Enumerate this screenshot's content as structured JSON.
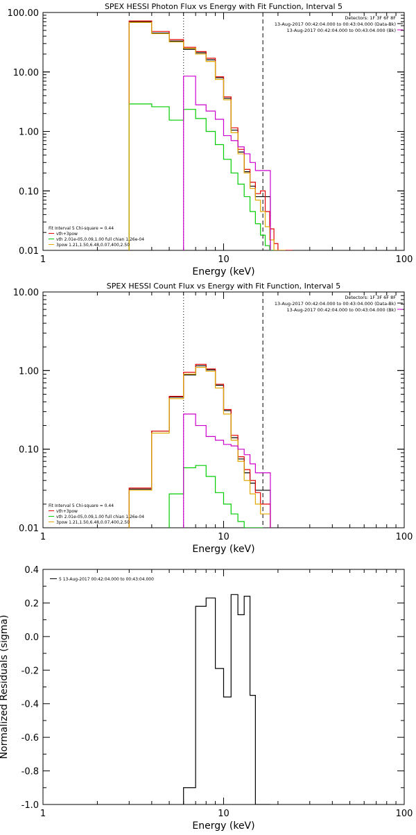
{
  "chart_data": [
    {
      "type": "line",
      "title": "SPEX HESSI Photon Flux vs Energy with Fit Function, Interval 5",
      "xlabel": "Energy (keV)",
      "ylabel": "",
      "xscale": "log",
      "yscale": "log",
      "xlim": [
        1,
        100
      ],
      "ylim": [
        0.01,
        100
      ],
      "xticks": [
        "1",
        "10",
        "100"
      ],
      "yticks": [
        "0.01",
        "0.10",
        "1.00",
        "10.00",
        "100.00"
      ],
      "dotted_line_x": 6.0,
      "dashed_line_x": 16.5,
      "header_lines": [
        "Detectors: 1F 3F 6F 8F",
        "13-Aug-2017 00:42:04.000 to 00:43:04.000 (Data-Bk)",
        "13-Aug-2017 00:42:04.000 to 00:43:04.000 (Bk)"
      ],
      "legend_lines": [
        "Fit Interval 5   Chi-square = 0.44",
        "vth+3pow",
        "vth 2.01e-05,0.09,1.00  full chian 1.26e-04",
        "3pow 1.21,1.50,6.48,0.07,400,2.50"
      ],
      "series": [
        {
          "name": "Data-Bk",
          "color": "#000000",
          "x": [
            3,
            4,
            5,
            6,
            7,
            8,
            9,
            10,
            11,
            12,
            13,
            14,
            15,
            16.5
          ],
          "values": [
            70,
            45,
            33,
            24,
            21,
            16,
            8,
            3.6,
            1.05,
            0.45,
            0.21,
            0.12,
            0.08,
            0.08
          ]
        },
        {
          "name": "vth+3pow",
          "color": "#e00000",
          "x": [
            3,
            4,
            5,
            6,
            7,
            8,
            9,
            10,
            11,
            12,
            13,
            14,
            15,
            16,
            17,
            18,
            19,
            20,
            21,
            22
          ],
          "values": [
            72,
            48,
            35,
            26,
            22,
            17,
            8.3,
            3.8,
            1.15,
            0.5,
            0.23,
            0.14,
            0.09,
            0.1,
            0.045,
            0.023,
            0.013,
            0.01,
            0.01,
            0.01
          ]
        },
        {
          "name": "vth",
          "color": "#00cc00",
          "x": [
            3,
            4,
            5,
            6,
            7,
            8,
            9,
            10,
            11,
            12,
            13,
            14,
            15,
            16,
            17,
            18
          ],
          "values": [
            2.9,
            2.6,
            1.55,
            2.35,
            1.65,
            1.0,
            0.6,
            0.34,
            0.2,
            0.13,
            0.08,
            0.045,
            0.028,
            0.018,
            0.012,
            0.01
          ]
        },
        {
          "name": "3pow",
          "color": "#e0a800",
          "x": [
            3,
            4,
            5,
            6,
            7,
            8,
            9,
            10,
            11,
            12,
            13,
            14,
            15,
            16,
            17,
            18,
            19,
            20
          ],
          "values": [
            68,
            44,
            32,
            25,
            20,
            15,
            7.5,
            3.4,
            0.95,
            0.42,
            0.2,
            0.11,
            0.07,
            0.045,
            0.025,
            0.015,
            0.01,
            0.01
          ]
        },
        {
          "name": "Bk",
          "color": "#cc00cc",
          "x": [
            6,
            7,
            8,
            9,
            10,
            11,
            12,
            13,
            14,
            15,
            16.5
          ],
          "values": [
            8.5,
            2.8,
            2.2,
            1.6,
            0.85,
            0.7,
            0.55,
            0.42,
            0.3,
            0.22,
            0.22
          ]
        }
      ]
    },
    {
      "type": "line",
      "title": "SPEX HESSI Count Flux vs Energy with Fit Function, Interval 5",
      "xlabel": "Energy (keV)",
      "ylabel": "",
      "xscale": "log",
      "yscale": "log",
      "xlim": [
        1,
        100
      ],
      "ylim": [
        0.01,
        10
      ],
      "xticks": [
        "1",
        "10",
        "100"
      ],
      "yticks": [
        "0.01",
        "0.10",
        "1.00",
        "10.00"
      ],
      "dotted_line_x": 6.0,
      "dashed_line_x": 16.5,
      "header_lines": [
        "Detectors: 1F 3F 6F 8F",
        "13-Aug-2017 00:42:04.000 to 00:43:04.000 (Data-Bk)",
        "13-Aug-2017 00:42:04.000 to 00:43:04.000 (Bk)"
      ],
      "legend_lines": [
        "Fit Interval 5   Chi-square = 0.44",
        "vth+3pow",
        "vth 2.01e-05,0.09,1.00  full chian 1.26e-04",
        "3pow 1.21,1.50,6.48,0.07,400,2.50"
      ],
      "series": [
        {
          "name": "Data-Bk",
          "color": "#000000",
          "x": [
            3,
            4,
            5,
            6,
            7,
            8,
            9,
            10,
            11,
            12,
            13,
            14,
            15,
            16.5
          ],
          "values": [
            0.031,
            0.17,
            0.46,
            0.88,
            1.15,
            1.02,
            0.65,
            0.31,
            0.14,
            0.075,
            0.05,
            0.037,
            0.03,
            0.03
          ]
        },
        {
          "name": "vth+3pow",
          "color": "#e00000",
          "x": [
            3,
            4,
            5,
            6,
            7,
            8,
            9,
            10,
            11,
            12,
            13,
            14,
            15,
            16,
            16.5
          ],
          "values": [
            0.032,
            0.17,
            0.47,
            0.95,
            1.2,
            1.05,
            0.67,
            0.32,
            0.15,
            0.08,
            0.055,
            0.04,
            0.028,
            0.02,
            0.02
          ]
        },
        {
          "name": "vth",
          "color": "#00cc00",
          "x": [
            5,
            6,
            7,
            8,
            9,
            10,
            11,
            12,
            13,
            14,
            15
          ],
          "values": [
            0.027,
            0.058,
            0.062,
            0.045,
            0.028,
            0.02,
            0.015,
            0.012,
            0.01,
            0.01,
            0.01
          ]
        },
        {
          "name": "3pow",
          "color": "#e0a800",
          "x": [
            3,
            4,
            5,
            6,
            7,
            8,
            9,
            10,
            11,
            12,
            13,
            14,
            15,
            16,
            16.5
          ],
          "values": [
            0.03,
            0.16,
            0.44,
            0.9,
            1.1,
            0.98,
            0.6,
            0.28,
            0.13,
            0.07,
            0.04,
            0.027,
            0.02,
            0.015,
            0.015
          ]
        },
        {
          "name": "Bk",
          "color": "#cc00cc",
          "x": [
            6,
            7,
            8,
            9,
            10,
            11,
            12,
            13,
            14,
            15,
            16.5
          ],
          "values": [
            0.28,
            0.2,
            0.145,
            0.13,
            0.115,
            0.11,
            0.1,
            0.085,
            0.065,
            0.05,
            0.05
          ]
        }
      ]
    },
    {
      "type": "line",
      "title": "",
      "xlabel": "Energy (keV)",
      "ylabel": "Normalized Residuals (sigma)",
      "xscale": "log",
      "yscale": "linear",
      "xlim": [
        1,
        100
      ],
      "ylim": [
        -1.0,
        0.4
      ],
      "xticks": [
        "1",
        "10",
        "100"
      ],
      "yticks": [
        "-1.0",
        "-0.8",
        "-0.6",
        "-0.4",
        "-0.2",
        "0.0",
        "0.2",
        "0.4"
      ],
      "legend_lines": [
        "5  13-Aug-2017 00:42:04.000 to 00:43:04.000"
      ],
      "series": [
        {
          "name": "5  13-Aug-2017 00:42:04.000 to 00:43:04.000",
          "color": "#000000",
          "x": [
            6,
            7,
            8,
            9,
            10,
            11,
            12,
            13,
            14,
            15,
            16.5
          ],
          "values": [
            -0.9,
            0.18,
            0.23,
            -0.19,
            -0.36,
            0.25,
            0.13,
            0.24,
            -0.35,
            -1.0,
            -1.0
          ]
        }
      ]
    }
  ]
}
